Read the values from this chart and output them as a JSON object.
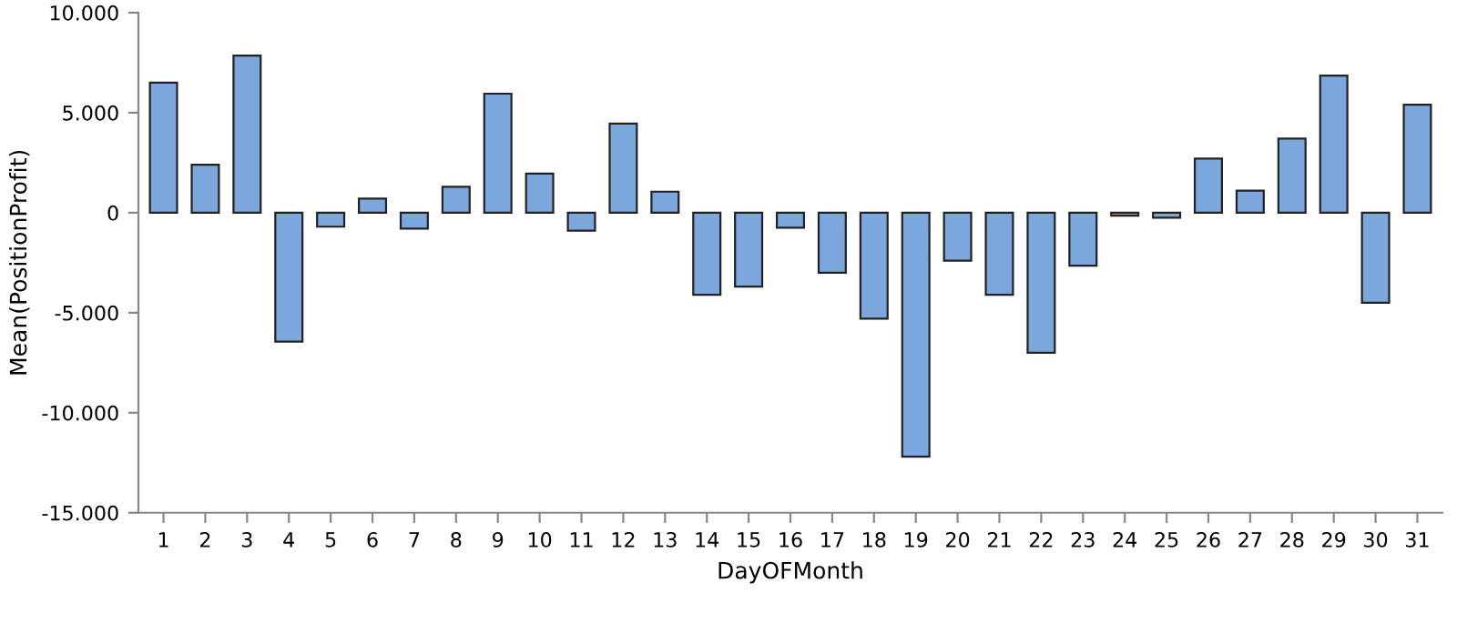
{
  "chart_data": {
    "type": "bar",
    "xlabel": "DayOFMonth",
    "ylabel": "Mean(PositionProfit)",
    "categories": [
      "1",
      "2",
      "3",
      "4",
      "5",
      "6",
      "7",
      "8",
      "9",
      "10",
      "11",
      "12",
      "13",
      "14",
      "15",
      "16",
      "17",
      "18",
      "19",
      "20",
      "21",
      "22",
      "23",
      "24",
      "25",
      "26",
      "27",
      "28",
      "29",
      "30",
      "31"
    ],
    "values": [
      6500,
      2400,
      7850,
      -6450,
      -700,
      700,
      -800,
      1300,
      5950,
      1950,
      -900,
      4450,
      1050,
      -4100,
      -3700,
      -750,
      -3000,
      -5300,
      -12200,
      -2400,
      -4100,
      -7000,
      -2650,
      -150,
      -250,
      2700,
      1100,
      3700,
      6850,
      -4500,
      5400
    ],
    "color": "#7ba7dc",
    "ylim": [
      -15000,
      10000
    ],
    "yticks": [
      {
        "value": -15000,
        "label": "-15.000"
      },
      {
        "value": -10000,
        "label": "-10.000"
      },
      {
        "value": -5000,
        "label": "-5.000"
      },
      0,
      {
        "value": 5000,
        "label": "5.000"
      },
      {
        "value": 10000,
        "label": "10.000"
      }
    ],
    "grid": false
  }
}
